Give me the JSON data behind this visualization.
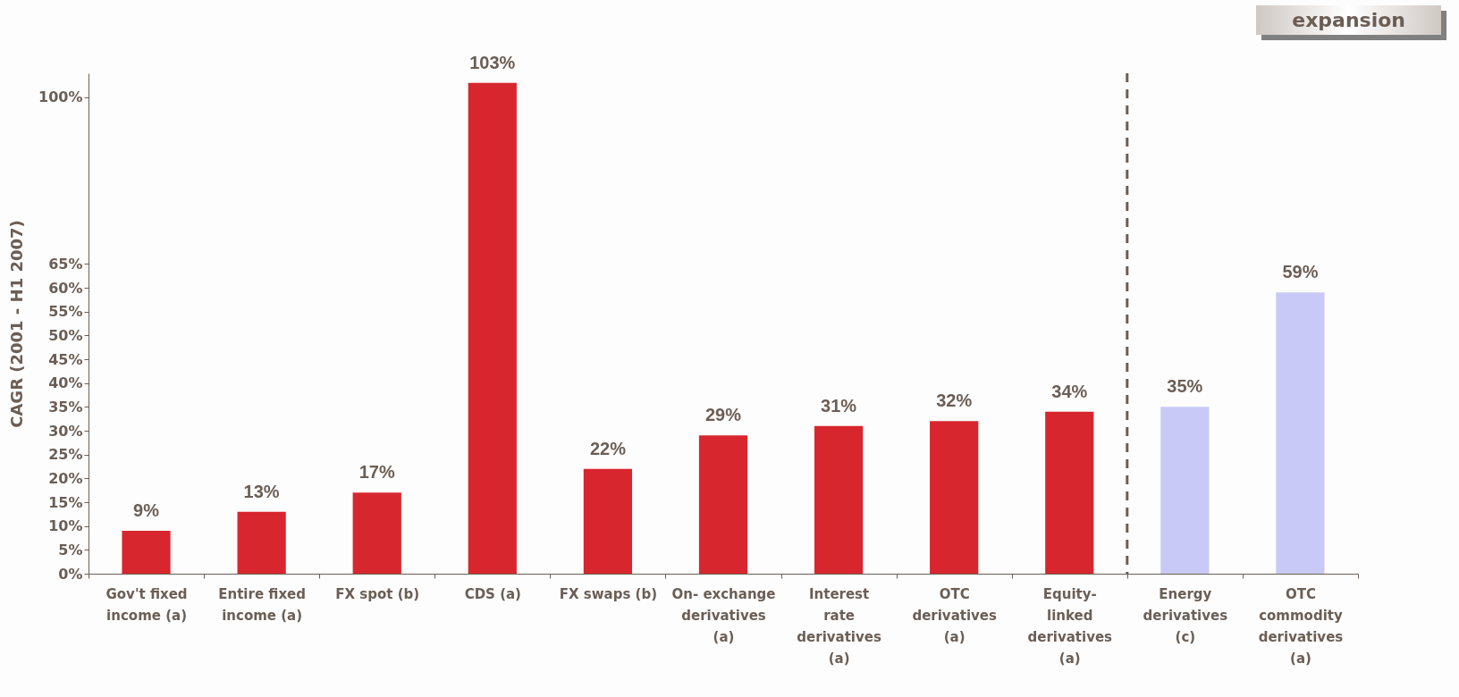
{
  "chart_data": {
    "type": "bar",
    "ylabel": "CAGR (2001 - H1 2007)",
    "categories": [
      "Gov't fixed income (a)",
      "Entire fixed income (a)",
      "FX spot (b)",
      "CDS (a)",
      "FX swaps (b)",
      "On- exchange derivatives (a)",
      "Interest rate derivatives (a)",
      "OTC derivatives (a)",
      "Equity- linked derivatives (a)",
      "Energy derivatives (c)",
      "OTC commodity derivatives (a)"
    ],
    "values": [
      9,
      13,
      17,
      103,
      22,
      29,
      31,
      32,
      34,
      35,
      59
    ],
    "value_labels": [
      "9%",
      "13%",
      "17%",
      "103%",
      "22%",
      "29%",
      "31%",
      "32%",
      "34%",
      "35%",
      "59%"
    ],
    "colors": [
      "#d8262e",
      "#d8262e",
      "#d8262e",
      "#d8262e",
      "#d8262e",
      "#d8262e",
      "#d8262e",
      "#d8262e",
      "#d8262e",
      "#c9c9f7",
      "#c9c9f7"
    ],
    "ylim": [
      0,
      105
    ],
    "yticks": [
      {
        "value": 0,
        "label": "0%"
      },
      {
        "value": 5,
        "label": "5%"
      },
      {
        "value": 10,
        "label": "10%"
      },
      {
        "value": 15,
        "label": "15%"
      },
      {
        "value": 20,
        "label": "20%"
      },
      {
        "value": 25,
        "label": "25%"
      },
      {
        "value": 30,
        "label": "30%"
      },
      {
        "value": 35,
        "label": "35%"
      },
      {
        "value": 40,
        "label": "40%"
      },
      {
        "value": 45,
        "label": "45%"
      },
      {
        "value": 50,
        "label": "50%"
      },
      {
        "value": 55,
        "label": "55%"
      },
      {
        "value": 60,
        "label": "60%"
      },
      {
        "value": 65,
        "label": "65%"
      },
      {
        "value": 100,
        "label": "100%"
      }
    ],
    "annotations": [
      "expansion"
    ],
    "grid": false
  }
}
